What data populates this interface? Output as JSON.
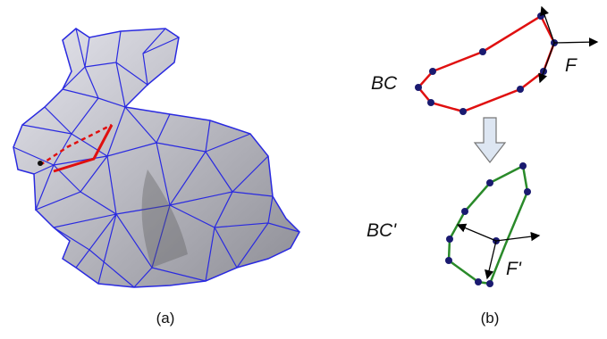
{
  "figure": {
    "panel_a": {
      "caption": "(a)"
    },
    "panel_b": {
      "caption": "(b)",
      "top": {
        "label": "BC",
        "force": "F"
      },
      "bottom": {
        "label": "BC'",
        "force": "F'"
      }
    }
  }
}
